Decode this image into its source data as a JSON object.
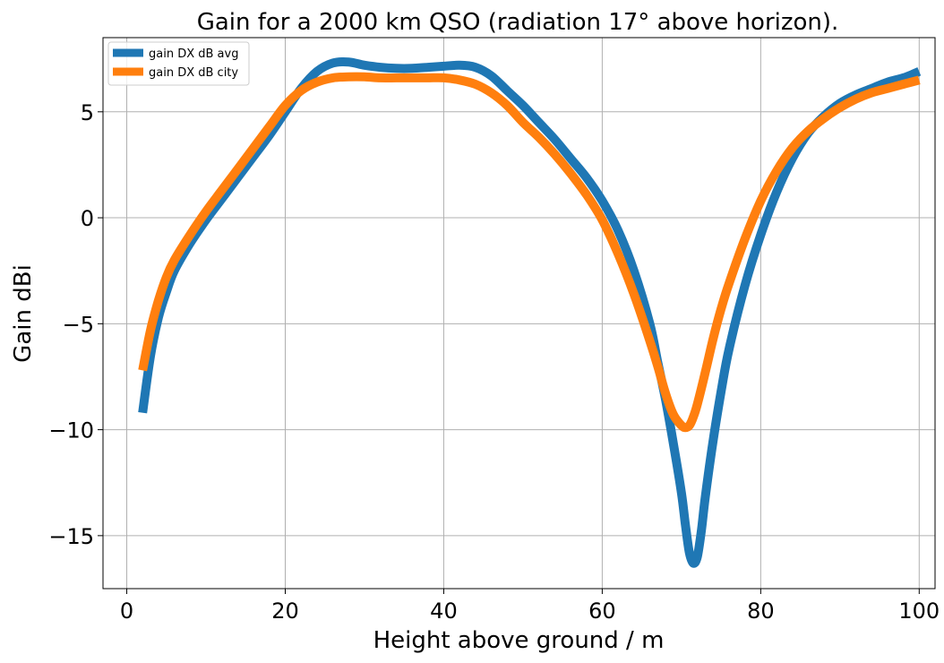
{
  "chart_data": {
    "type": "line",
    "title": "Gain for a 2000 km QSO (radiation 17° above horizon).",
    "xlabel": "Height above ground / m",
    "ylabel": "Gain dBi",
    "xlim": [
      -3,
      102
    ],
    "ylim": [
      -17.5,
      8.5
    ],
    "xticks": [
      0,
      20,
      40,
      60,
      80,
      100
    ],
    "yticks": [
      5,
      0,
      -5,
      -10,
      -15
    ],
    "xtick_labels": [
      "0",
      "20",
      "40",
      "60",
      "80",
      "100"
    ],
    "ytick_labels": [
      "5",
      "0",
      "−5",
      "−10",
      "−15"
    ],
    "grid": true,
    "legend_position": "top-left",
    "series": [
      {
        "name": "gain DX dB avg",
        "color": "#1f77b4",
        "x": [
          2,
          3,
          4,
          5,
          6,
          8,
          10,
          12,
          14,
          16,
          18,
          20,
          22,
          24,
          26,
          28,
          30,
          32,
          34,
          36,
          38,
          40,
          42,
          44,
          46,
          48,
          50,
          52,
          54,
          56,
          58,
          60,
          62,
          64,
          66,
          67,
          68,
          69,
          70,
          70.5,
          71,
          71.5,
          72,
          72.5,
          73,
          74,
          75,
          76,
          78,
          80,
          82,
          84,
          86,
          88,
          90,
          92,
          94,
          96,
          98,
          100
        ],
        "y": [
          -9.2,
          -6.5,
          -4.7,
          -3.5,
          -2.5,
          -1.2,
          -0.1,
          0.9,
          1.9,
          2.9,
          3.9,
          5.0,
          6.1,
          6.9,
          7.3,
          7.35,
          7.2,
          7.1,
          7.05,
          7.05,
          7.1,
          7.15,
          7.2,
          7.1,
          6.7,
          6.0,
          5.3,
          4.5,
          3.7,
          2.8,
          1.9,
          0.8,
          -0.6,
          -2.5,
          -5.0,
          -6.8,
          -8.6,
          -10.7,
          -13.0,
          -14.5,
          -15.8,
          -16.3,
          -16.0,
          -14.8,
          -13.2,
          -10.5,
          -8.2,
          -6.2,
          -3.2,
          -0.8,
          1.2,
          2.8,
          4.0,
          4.8,
          5.4,
          5.8,
          6.1,
          6.4,
          6.6,
          6.9
        ]
      },
      {
        "name": "gain DX dB city",
        "color": "#ff7f0e",
        "x": [
          2,
          3,
          4,
          5,
          6,
          8,
          10,
          12,
          14,
          16,
          18,
          20,
          22,
          24,
          26,
          28,
          30,
          32,
          34,
          36,
          38,
          40,
          42,
          44,
          46,
          48,
          50,
          52,
          54,
          56,
          58,
          60,
          62,
          64,
          66,
          67,
          68,
          69,
          70,
          70.5,
          71,
          71.5,
          72,
          73,
          74,
          75,
          76,
          78,
          80,
          82,
          84,
          86,
          88,
          90,
          92,
          94,
          96,
          98,
          100
        ],
        "y": [
          -7.2,
          -5.3,
          -3.9,
          -2.8,
          -2.0,
          -0.8,
          0.3,
          1.3,
          2.3,
          3.3,
          4.3,
          5.3,
          6.0,
          6.4,
          6.6,
          6.65,
          6.65,
          6.6,
          6.6,
          6.6,
          6.6,
          6.6,
          6.5,
          6.3,
          5.9,
          5.3,
          4.5,
          3.8,
          3.0,
          2.1,
          1.1,
          -0.1,
          -1.7,
          -3.6,
          -5.8,
          -7.0,
          -8.3,
          -9.3,
          -9.8,
          -9.9,
          -9.8,
          -9.4,
          -8.8,
          -7.3,
          -5.7,
          -4.3,
          -3.1,
          -1.0,
          0.8,
          2.2,
          3.3,
          4.1,
          4.7,
          5.2,
          5.6,
          5.9,
          6.1,
          6.3,
          6.5
        ]
      }
    ]
  }
}
